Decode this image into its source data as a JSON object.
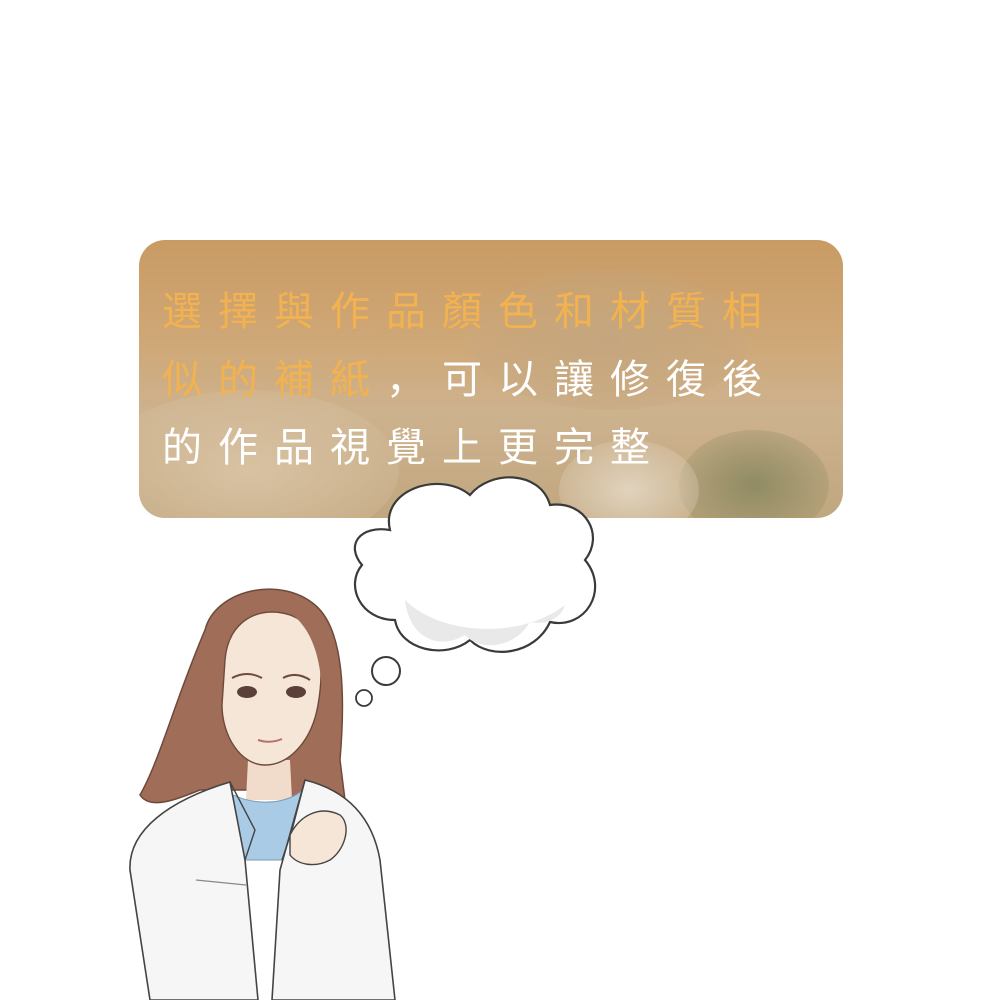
{
  "caption": {
    "line1_highlight": "選擇與作品顏色和材質相",
    "line2_highlight": "似的補紙",
    "line2_rest": "，可以讓修復後",
    "line3_a": "的作品視",
    "line3_b": "覺上更完整"
  },
  "colors": {
    "accent": "#f2b24f",
    "panel": "#cda874",
    "hair": "#9c6a55",
    "coat": "#f6f6f6",
    "shirt": "#a9cbe6",
    "skin": "#f4e3d5"
  },
  "icons": [
    "thought-bubble-icon"
  ]
}
